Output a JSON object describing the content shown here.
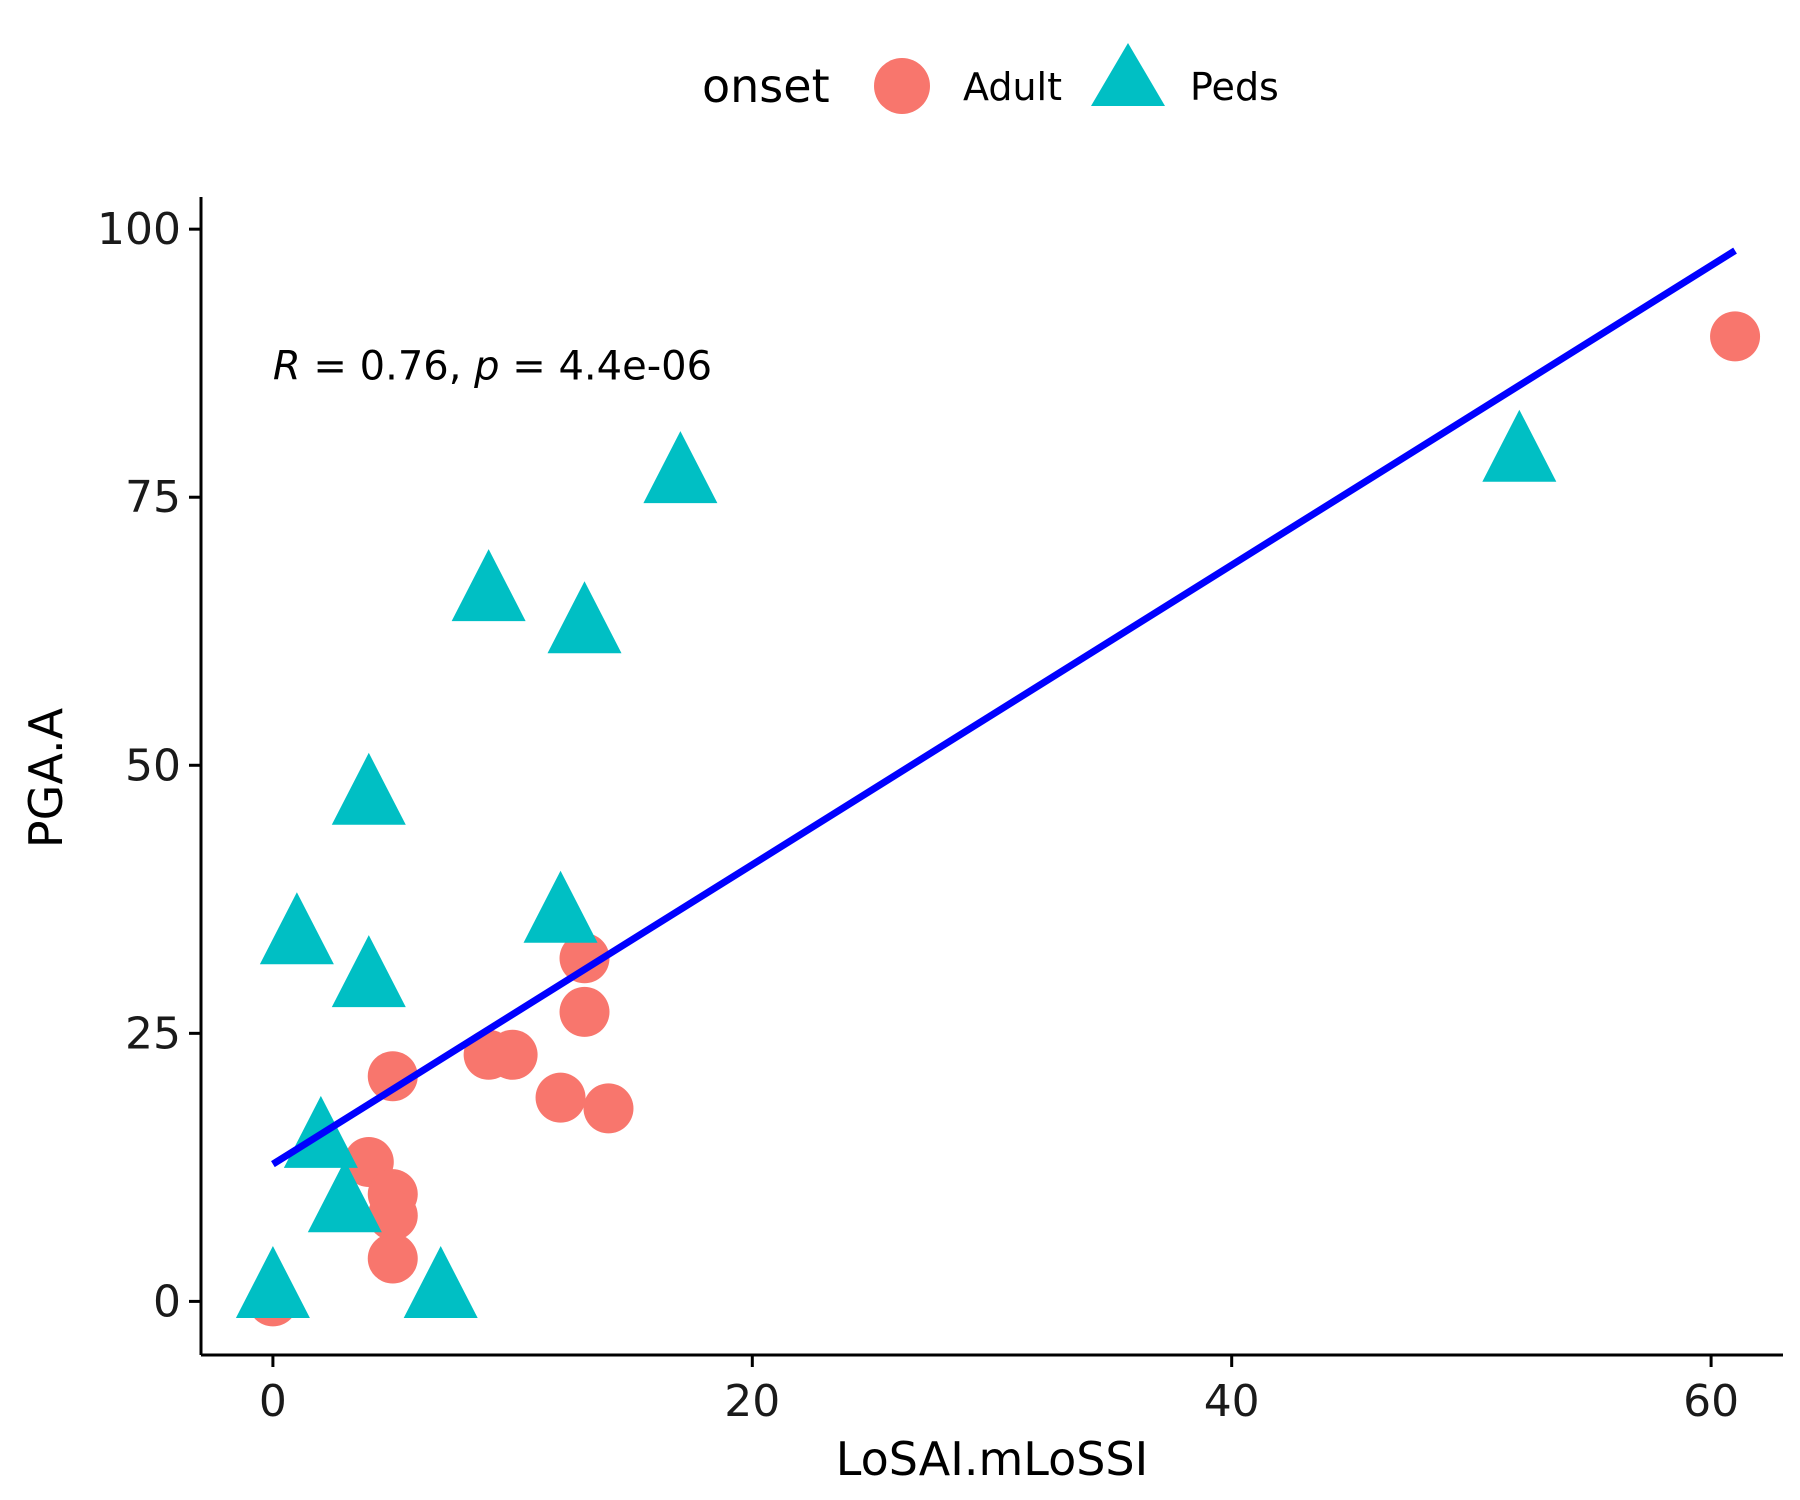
{
  "chart_data": {
    "type": "scatter",
    "xlabel": "LoSAI.mLoSSI",
    "ylabel": "PGA.A",
    "xlim": [
      -3,
      63
    ],
    "ylim": [
      -5,
      103
    ],
    "x_ticks": [
      0,
      20,
      40,
      60
    ],
    "y_ticks": [
      0,
      25,
      50,
      75,
      100
    ],
    "x_tick_labels": [
      "0",
      "20",
      "40",
      "60"
    ],
    "y_tick_labels": [
      "0",
      "25",
      "50",
      "75",
      "100"
    ],
    "grid": false,
    "legend": {
      "position": "top",
      "title": "onset",
      "entries": [
        {
          "label": "Adult",
          "shape": "circle",
          "color": "#F8766D"
        },
        {
          "label": "Peds",
          "shape": "triangle",
          "color": "#00BFC4"
        }
      ]
    },
    "annotation": {
      "r_symbol": "R",
      "r_text": " = 0.76, ",
      "p_symbol": "p",
      "p_text": " = 4.4e-06",
      "x": 0,
      "y": 86
    },
    "series": [
      {
        "name": "Adult",
        "shape": "circle",
        "color": "#F8766D",
        "points": [
          {
            "x": 0,
            "y": 0
          },
          {
            "x": 4,
            "y": 13
          },
          {
            "x": 5,
            "y": 10
          },
          {
            "x": 5,
            "y": 8
          },
          {
            "x": 5,
            "y": 4
          },
          {
            "x": 5,
            "y": 21
          },
          {
            "x": 9,
            "y": 23
          },
          {
            "x": 10,
            "y": 23
          },
          {
            "x": 12,
            "y": 19
          },
          {
            "x": 13,
            "y": 32
          },
          {
            "x": 13,
            "y": 27
          },
          {
            "x": 14,
            "y": 18
          },
          {
            "x": 61,
            "y": 90
          }
        ]
      },
      {
        "name": "Peds",
        "shape": "triangle",
        "color": "#00BFC4",
        "points": [
          {
            "x": 0,
            "y": 1
          },
          {
            "x": 1,
            "y": 34
          },
          {
            "x": 2,
            "y": 15
          },
          {
            "x": 3,
            "y": 9
          },
          {
            "x": 4,
            "y": 47
          },
          {
            "x": 4,
            "y": 30
          },
          {
            "x": 7,
            "y": 1
          },
          {
            "x": 9,
            "y": 66
          },
          {
            "x": 12,
            "y": 36
          },
          {
            "x": 13,
            "y": 63
          },
          {
            "x": 17,
            "y": 77
          },
          {
            "x": 52,
            "y": 79
          }
        ]
      }
    ],
    "regression_line": {
      "color": "#0000FF",
      "x1": 0,
      "y1": 12.8,
      "x2": 61,
      "y2": 98
    }
  }
}
